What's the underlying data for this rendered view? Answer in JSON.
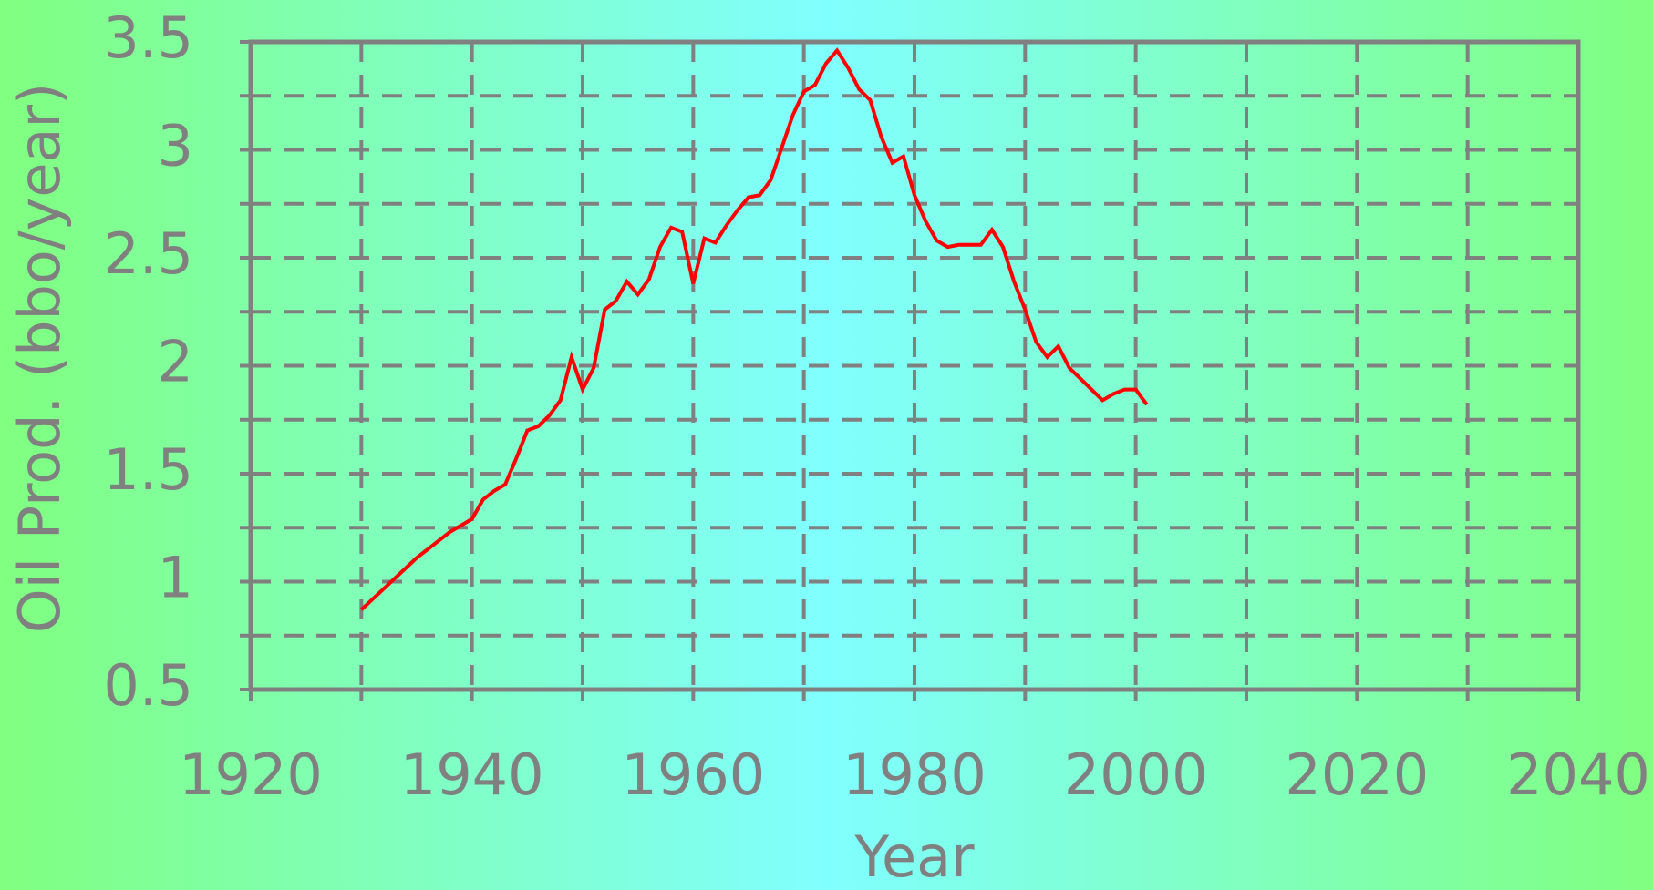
{
  "chart_data": {
    "type": "line",
    "xlabel": "Year",
    "ylabel": "Oil Prod. (bbo/year)",
    "x": [
      1930,
      1935,
      1938,
      1940,
      1941,
      1942,
      1943,
      1944,
      1945,
      1946,
      1947,
      1948,
      1949,
      1950,
      1951,
      1952,
      1953,
      1954,
      1955,
      1956,
      1957,
      1958,
      1959,
      1960,
      1961,
      1962,
      1963,
      1964,
      1965,
      1966,
      1967,
      1968,
      1969,
      1970,
      1971,
      1972,
      1973,
      1974,
      1975,
      1976,
      1977,
      1978,
      1979,
      1980,
      1981,
      1982,
      1983,
      1984,
      1985,
      1986,
      1987,
      1988,
      1989,
      1990,
      1991,
      1992,
      1993,
      1994,
      1995,
      1996,
      1997,
      1998,
      1999,
      2000,
      2001
    ],
    "series": [
      {
        "color": "#ff0000",
        "values": [
          0.87,
          1.11,
          1.23,
          1.29,
          1.38,
          1.42,
          1.45,
          1.57,
          1.7,
          1.72,
          1.77,
          1.84,
          2.04,
          1.89,
          1.99,
          2.26,
          2.3,
          2.39,
          2.33,
          2.4,
          2.55,
          2.64,
          2.62,
          2.38,
          2.59,
          2.57,
          2.65,
          2.72,
          2.78,
          2.79,
          2.86,
          3.01,
          3.16,
          3.27,
          3.3,
          3.4,
          3.46,
          3.38,
          3.28,
          3.23,
          3.06,
          2.94,
          2.97,
          2.79,
          2.67,
          2.58,
          2.55,
          2.56,
          2.56,
          2.56,
          2.63,
          2.55,
          2.39,
          2.26,
          2.11,
          2.04,
          2.09,
          1.99,
          1.94,
          1.89,
          1.84,
          1.87,
          1.89,
          1.89,
          1.82
        ]
      }
    ],
    "xlim": [
      1920,
      2040
    ],
    "xticks": [
      1920,
      1940,
      1960,
      1980,
      2000,
      2020,
      2040
    ],
    "xminor_ticks": [
      1930,
      1950,
      1970,
      1990,
      2010,
      2030
    ],
    "ylim": [
      0.5,
      3.5
    ],
    "yticks": [
      0.5,
      1,
      1.5,
      2,
      2.5,
      3,
      3.5
    ],
    "yminor_ticks": [
      0.75,
      1.25,
      1.75,
      2.25,
      2.75,
      3.25
    ],
    "grid": true
  }
}
